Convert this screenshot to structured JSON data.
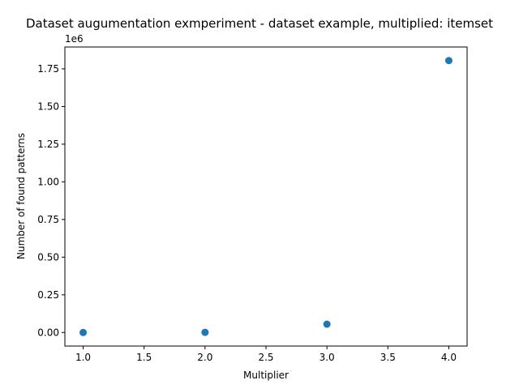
{
  "chart_data": {
    "type": "scatter",
    "title": "Dataset augumentation exmperiment - dataset example, multiplied: itemset",
    "xlabel": "Multiplier",
    "ylabel": "Number of found patterns",
    "y_offset_label": "1e6",
    "x": [
      1.0,
      2.0,
      3.0,
      4.0
    ],
    "y": [
      0,
      900,
      55000,
      1805000
    ],
    "xlim": [
      0.85,
      4.15
    ],
    "ylim": [
      -90000,
      1895000
    ],
    "xticks": [
      1.0,
      1.5,
      2.0,
      2.5,
      3.0,
      3.5,
      4.0
    ],
    "xtick_labels": [
      "1.0",
      "1.5",
      "2.0",
      "2.5",
      "3.0",
      "3.5",
      "4.0"
    ],
    "yticks": [
      0,
      250000,
      500000,
      750000,
      1000000,
      1250000,
      1500000,
      1750000
    ],
    "ytick_labels": [
      "0.00",
      "0.25",
      "0.50",
      "0.75",
      "1.00",
      "1.25",
      "1.50",
      "1.75"
    ],
    "color": "#1f77b4",
    "grid": false
  }
}
